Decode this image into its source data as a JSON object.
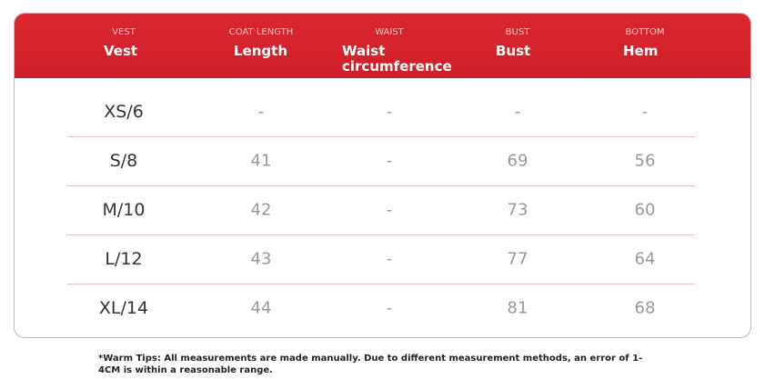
{
  "table": {
    "header": [
      {
        "code": "VEST",
        "label": "Vest"
      },
      {
        "code": "COAT LENGTH",
        "label": "Length"
      },
      {
        "code": "WAIST",
        "label": "Waist circumference"
      },
      {
        "code": "BUST",
        "label": "Bust"
      },
      {
        "code": "BOTTOM",
        "label": "Hem"
      }
    ],
    "rows": [
      [
        "XS/6",
        "-",
        "-",
        "-",
        "-"
      ],
      [
        "S/8",
        41,
        "-",
        69,
        56
      ],
      [
        "M/10",
        42,
        "-",
        73,
        60
      ],
      [
        "L/12",
        43,
        "-",
        77,
        64
      ],
      [
        "XL/14",
        44,
        "-",
        81,
        68
      ]
    ]
  },
  "footnote": "*Warm Tips: All measurements are made manually. Due to different measurement methods, an error of 1-4CM is within a reasonable range."
}
